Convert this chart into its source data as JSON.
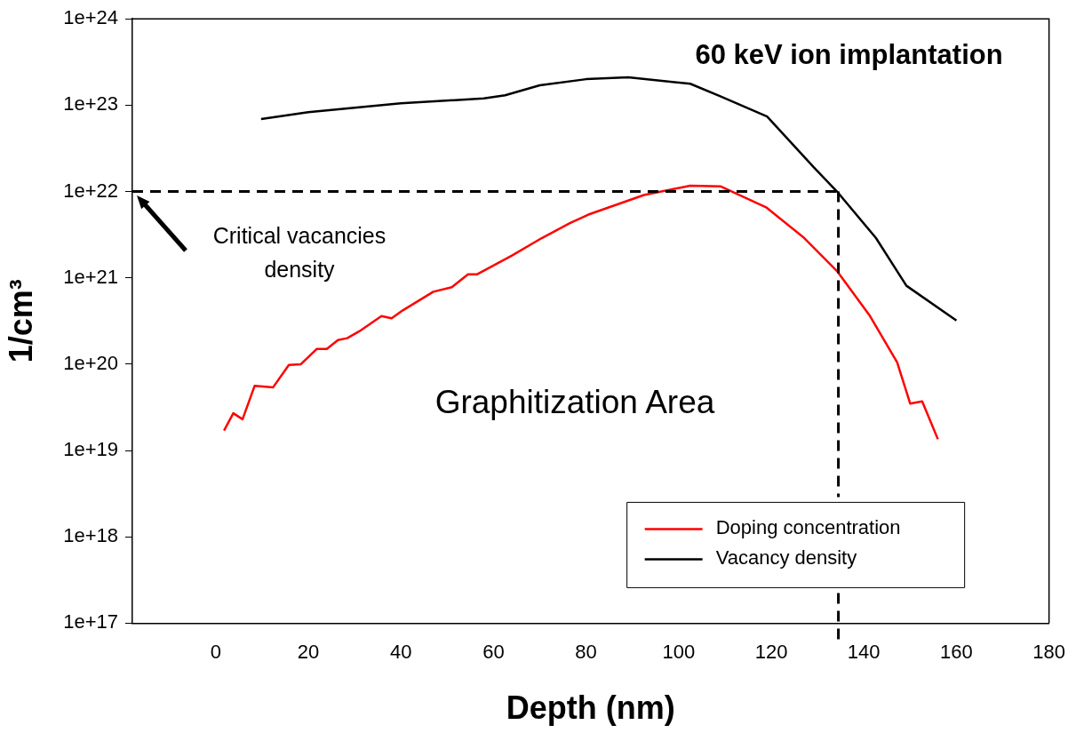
{
  "chart_data": {
    "type": "line",
    "title": "60 keV ion implantation",
    "xlabel": "Depth (nm)",
    "ylabel": "1/cm³",
    "log": "y",
    "xlim": [
      -18,
      180
    ],
    "xticks": [
      0,
      20,
      40,
      60,
      80,
      100,
      120,
      140,
      160,
      180
    ],
    "ylim": [
      1e+17,
      1e+24
    ],
    "yticks": [
      {
        "value": 1e+17,
        "label": "1e+17"
      },
      {
        "value": 1e+18,
        "label": "1e+18"
      },
      {
        "value": 1e+19,
        "label": "1e+19"
      },
      {
        "value": 1e+20,
        "label": "1e+20"
      },
      {
        "value": 1e+21,
        "label": "1e+21"
      },
      {
        "value": 1e+22,
        "label": "1e+22"
      },
      {
        "value": 1e+23,
        "label": "1e+23"
      },
      {
        "value": 1e+24,
        "label": "1e+24"
      }
    ],
    "grid": false,
    "legend": "bottom right",
    "marker": "none",
    "line_style": "solid",
    "series": [
      {
        "name": "Doping concentration",
        "color": "#ff0000",
        "x": [
          1.8,
          3.8,
          5.8,
          8.4,
          12.4,
          15.8,
          18.4,
          21.8,
          24,
          26.4,
          28.4,
          31,
          35.8,
          38,
          40.4,
          47,
          51,
          54.5,
          56.5,
          63.9,
          70.5,
          76.5,
          80.5,
          92.5,
          102.5,
          109,
          119,
          127.1,
          134.2,
          141.2,
          147.2,
          150,
          152.6,
          156
        ],
        "values": [
          1.7e+19,
          2.7e+19,
          2.3e+19,
          5.6e+19,
          5.4e+19,
          9.8e+19,
          1e+20,
          1.5e+20,
          1.5e+20,
          1.9e+20,
          2e+20,
          2.4e+20,
          3.6e+20,
          3.4e+20,
          4.2e+20,
          6.9e+20,
          7.8e+20,
          1.1e+21,
          1.1e+21,
          1.8e+21,
          2.9e+21,
          4.3e+21,
          5.4e+21,
          9.1e+21,
          1.17e+22,
          1.15e+22,
          6.5e+21,
          2.9e+21,
          1.2e+21,
          3.7e+20,
          1.05e+20,
          3.5e+19,
          3.7e+19,
          1.35e+19
        ]
      },
      {
        "name": "Vacancy density",
        "color": "#000000",
        "x": [
          9.8,
          20,
          40,
          57.9,
          62.5,
          70,
          80,
          89.1,
          102.5,
          109,
          119.1,
          129.2,
          134.2,
          142.6,
          149.2,
          160
        ],
        "values": [
          6.9e+22,
          8.3e+22,
          1.05e+23,
          1.2e+23,
          1.3e+23,
          1.7e+23,
          2e+23,
          2.1e+23,
          1.77e+23,
          1.27e+23,
          7.4e+22,
          1.9e+22,
          1e+22,
          2.9e+21,
          8.1e+20,
          3.2e+20
        ]
      }
    ],
    "ref_lines": [
      {
        "axis": "y",
        "value": 1e+22,
        "line_style": "dashed",
        "color": "#000000"
      },
      {
        "axis": "x",
        "value": 134.5,
        "line_style": "dashed",
        "color": "#000000"
      }
    ],
    "annotations": [
      "Critical vacancies density",
      "Graphitization Area"
    ]
  }
}
